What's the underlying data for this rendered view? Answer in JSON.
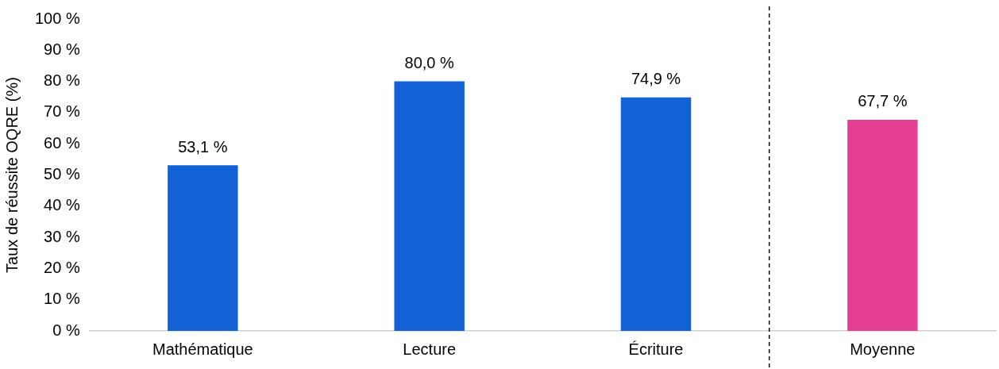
{
  "chart_data": {
    "type": "bar",
    "ylabel": "Taux de réussite OQRE (%)",
    "categories": [
      "Mathématique",
      "Lecture",
      "Écriture",
      "Moyenne"
    ],
    "values": [
      53.1,
      80.0,
      74.9,
      67.7
    ],
    "colors": [
      "#1262d6",
      "#1262d6",
      "#1262d6",
      "#e43f93"
    ],
    "value_labels": [
      "53,1 %",
      "80,0 %",
      "74,9 %",
      "67,7 %"
    ],
    "ylim": [
      0,
      100
    ],
    "yticks": [
      {
        "value": 0,
        "label": "0 %"
      },
      {
        "value": 10,
        "label": "10 %"
      },
      {
        "value": 20,
        "label": "20 %"
      },
      {
        "value": 30,
        "label": "30 %"
      },
      {
        "value": 40,
        "label": "40 %"
      },
      {
        "value": 50,
        "label": "50 %"
      },
      {
        "value": 60,
        "label": "60 %"
      },
      {
        "value": 70,
        "label": "70 %"
      },
      {
        "value": 80,
        "label": "80 %"
      },
      {
        "value": 90,
        "label": "90 %"
      },
      {
        "value": 100,
        "label": "100 %"
      }
    ],
    "grid": false,
    "legend": false
  }
}
